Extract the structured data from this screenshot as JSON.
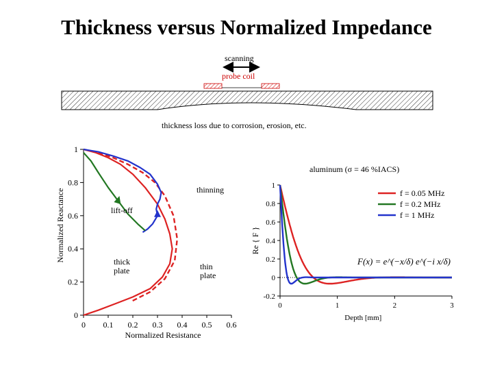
{
  "title": "Thickness versus Normalized Impedance",
  "diagram": {
    "scanning_label": "scanning",
    "probe_coil_label": "probe coil",
    "thickness_loss_label": "thickness loss due to corrosion, erosion, etc."
  },
  "chart_data": [
    {
      "type": "line",
      "name": "impedance-plane",
      "title": "",
      "xlabel": "Normalized Resistance",
      "ylabel": "Normalized Reactance",
      "xlim": [
        0,
        0.6
      ],
      "ylim": [
        0,
        1
      ],
      "x_ticks": [
        "0",
        "0.1",
        "0.2",
        "0.3",
        "0.4",
        "0.5",
        "0.6"
      ],
      "y_ticks": [
        "0",
        "0.2",
        "0.4",
        "0.6",
        "0.8",
        "1"
      ],
      "annotations": {
        "material": "aluminum (σ = 46 %IACS)",
        "thinning": "thinning",
        "lift_off": "lift-off",
        "thick_plate": "thick\nplate",
        "thin_plate": "thin\nplate"
      },
      "series": [
        {
          "name": "thick plate",
          "style": "solid",
          "color": "#dd2222",
          "x": [
            0.0,
            0.05,
            0.1,
            0.15,
            0.2,
            0.25,
            0.3,
            0.33,
            0.35,
            0.36,
            0.35,
            0.32,
            0.27,
            0.2,
            0.13,
            0.06,
            0.02,
            0.0
          ],
          "y": [
            1.0,
            0.98,
            0.95,
            0.91,
            0.85,
            0.77,
            0.67,
            0.58,
            0.49,
            0.4,
            0.31,
            0.23,
            0.16,
            0.11,
            0.07,
            0.03,
            0.01,
            0.0
          ]
        },
        {
          "name": "thin plate",
          "style": "dashed",
          "color": "#dd2222",
          "x": [
            0.0,
            0.06,
            0.12,
            0.18,
            0.24,
            0.29,
            0.33,
            0.365,
            0.38,
            0.37,
            0.33,
            0.27,
            0.19
          ],
          "y": [
            1.0,
            0.98,
            0.95,
            0.91,
            0.86,
            0.8,
            0.72,
            0.6,
            0.46,
            0.33,
            0.22,
            0.14,
            0.08
          ]
        },
        {
          "name": "thinning (1 MHz)",
          "style": "solid",
          "color": "#2233cc",
          "x": [
            0.0,
            0.06,
            0.12,
            0.18,
            0.23,
            0.27,
            0.3,
            0.315,
            0.31,
            0.3,
            0.295,
            0.3,
            0.28,
            0.26,
            0.24
          ],
          "y": [
            1.0,
            0.985,
            0.96,
            0.93,
            0.89,
            0.85,
            0.79,
            0.74,
            0.7,
            0.67,
            0.64,
            0.6,
            0.55,
            0.52,
            0.5
          ]
        },
        {
          "name": "lift-off (0.2 MHz)",
          "style": "solid",
          "color": "#227722",
          "x": [
            0.0,
            0.03,
            0.06,
            0.1,
            0.14,
            0.18,
            0.22,
            0.25
          ],
          "y": [
            0.98,
            0.93,
            0.86,
            0.77,
            0.69,
            0.61,
            0.55,
            0.51
          ]
        }
      ]
    },
    {
      "type": "line",
      "name": "field-profile",
      "title": "",
      "xlabel": "Depth [mm]",
      "ylabel": "Re { F }",
      "xlim": [
        0,
        3
      ],
      "ylim": [
        -0.2,
        1
      ],
      "x_ticks": [
        "0",
        "1",
        "2",
        "3"
      ],
      "y_ticks": [
        "-0.2",
        "0",
        "0.2",
        "0.4",
        "0.6",
        "0.8",
        "1"
      ],
      "formula": "F(x) = e^(−x/δ) e^(−i x/δ)",
      "legend": [
        "f = 0.05 MHz",
        "f = 0.2 MHz",
        "f = 1 MHz"
      ],
      "legend_placement": "top-right",
      "series": [
        {
          "name": "f = 0.05 MHz",
          "freq_mhz": 0.05,
          "delta_mm": 0.37,
          "color": "#dd2222"
        },
        {
          "name": "f = 0.2 MHz",
          "freq_mhz": 0.2,
          "delta_mm": 0.185,
          "color": "#227722"
        },
        {
          "name": "f = 1 MHz",
          "freq_mhz": 1,
          "delta_mm": 0.083,
          "color": "#2233cc"
        }
      ]
    }
  ]
}
